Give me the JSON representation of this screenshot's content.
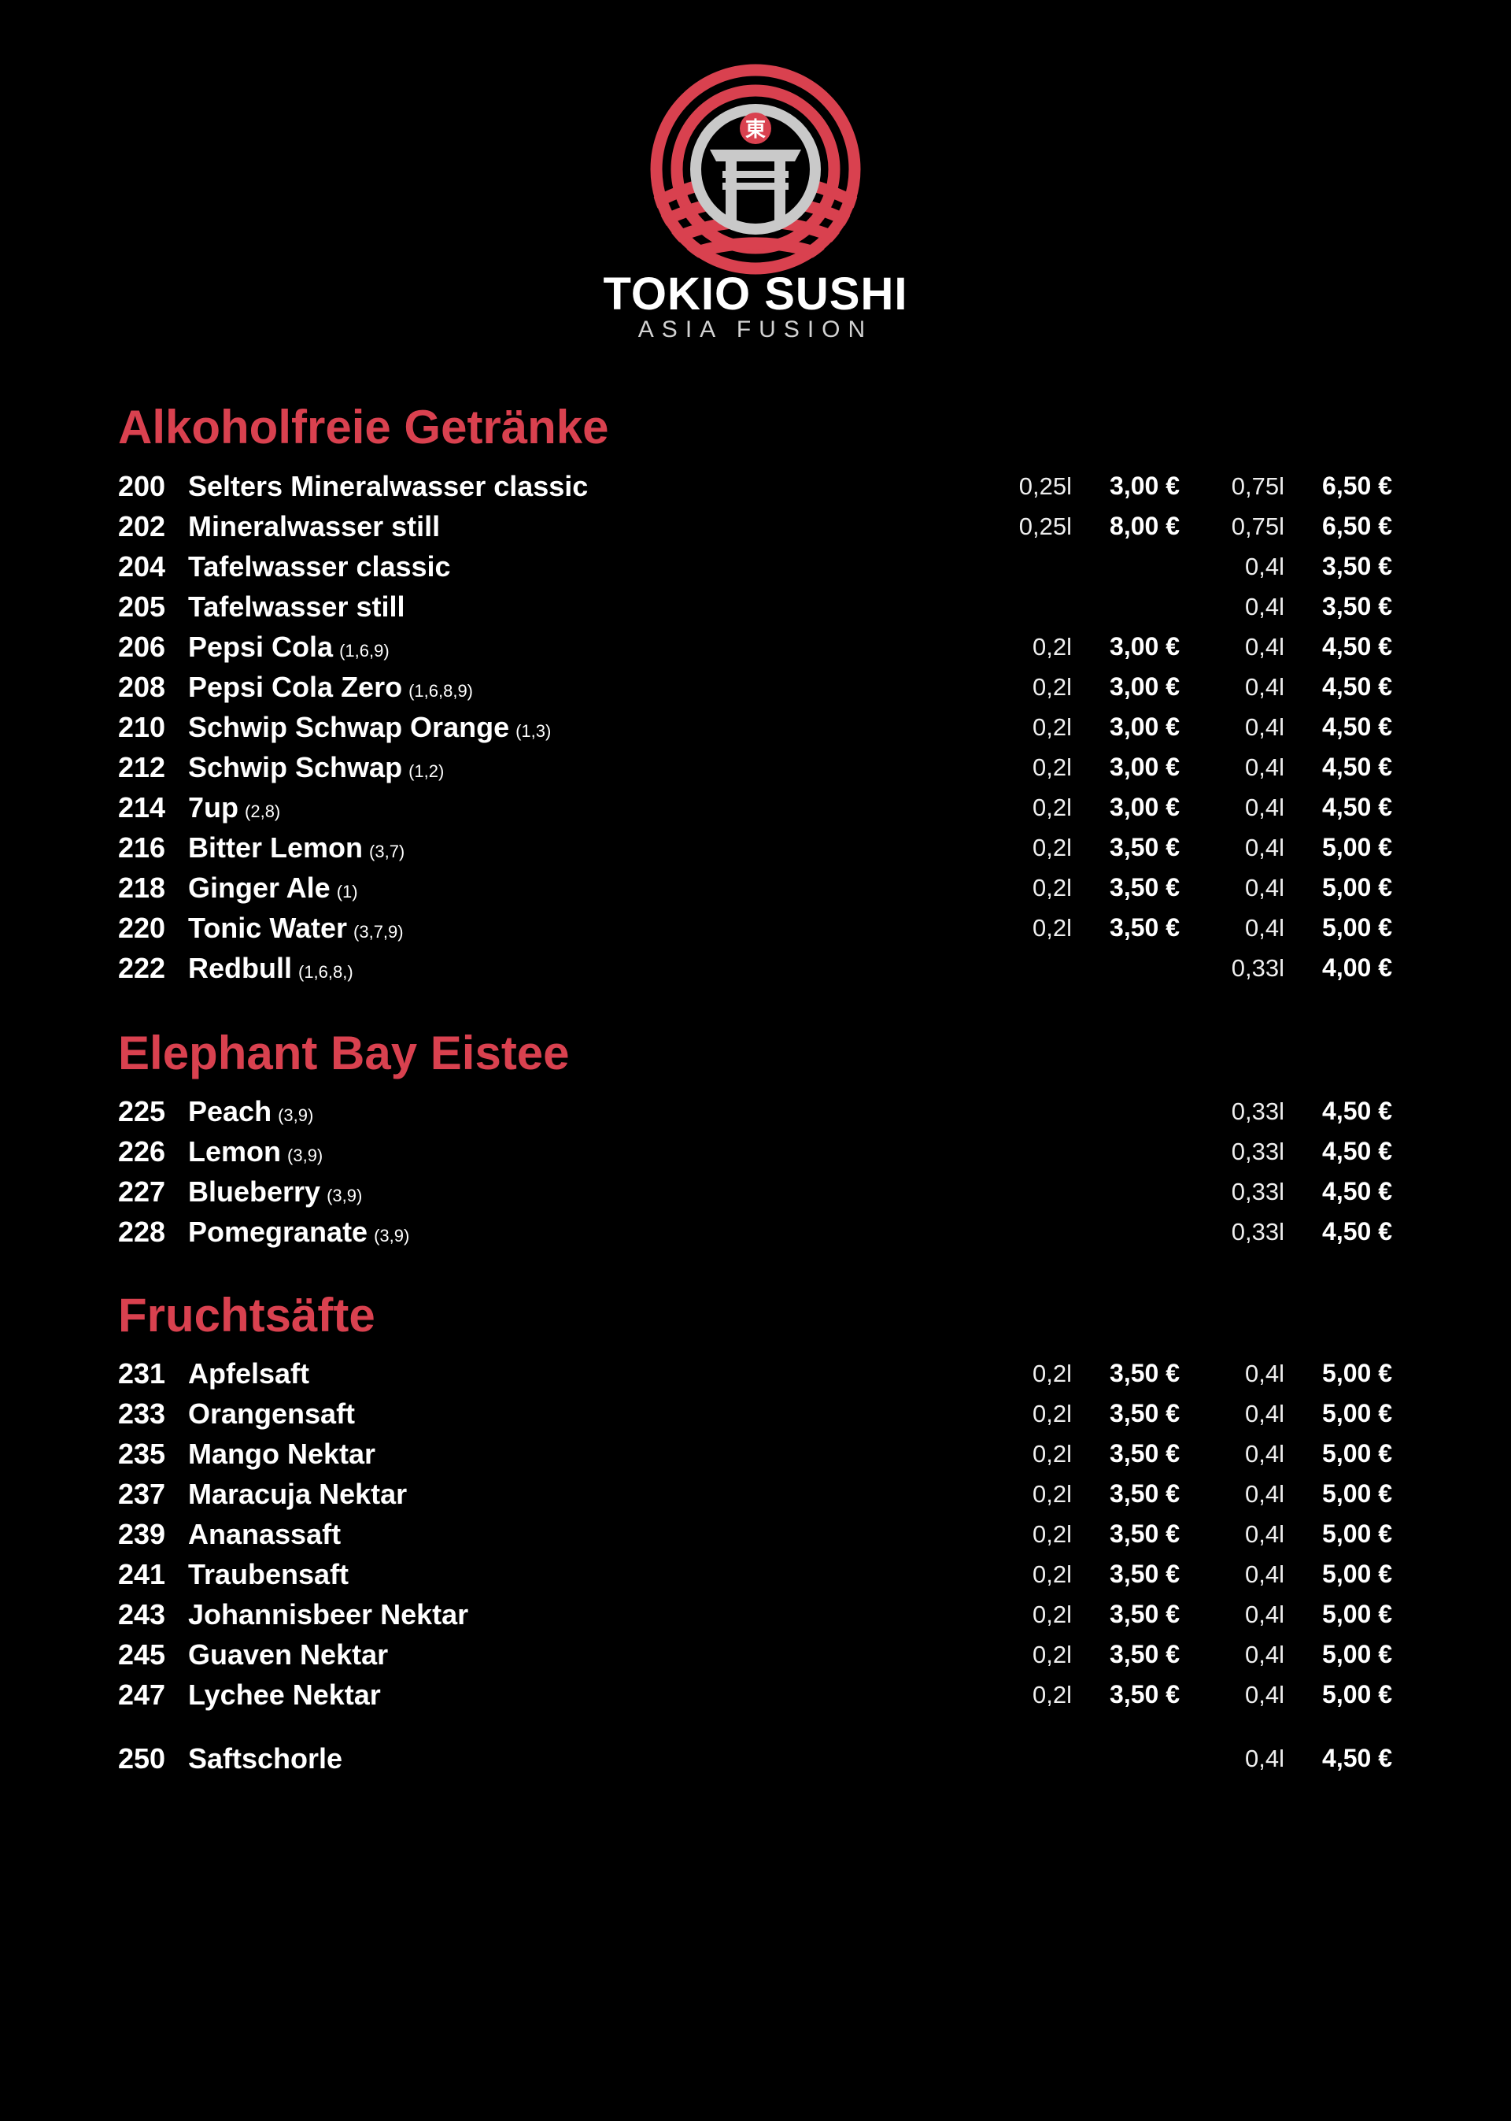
{
  "brand": {
    "title": "TOKIO SUSHI",
    "subtitle": "ASIA FUSION",
    "logo_glyph": "東",
    "accent": "#d9414f",
    "logo_grey": "#c9c9c9"
  },
  "sections": [
    {
      "title": "Alkoholfreie Getränke",
      "items": [
        {
          "num": "200",
          "name": "Selters Mineralwasser classic",
          "note": "",
          "vol1": "0,25l",
          "price1": "3,00 €",
          "vol2": "0,75l",
          "price2": "6,50 €"
        },
        {
          "num": "202",
          "name": "Mineralwasser still",
          "note": "",
          "vol1": "0,25l",
          "price1": "8,00 €",
          "vol2": "0,75l",
          "price2": "6,50 €"
        },
        {
          "num": "204",
          "name": "Tafelwasser classic",
          "note": "",
          "vol1": "",
          "price1": "",
          "vol2": "0,4l",
          "price2": "3,50 €"
        },
        {
          "num": "205",
          "name": "Tafelwasser still",
          "note": "",
          "vol1": "",
          "price1": "",
          "vol2": "0,4l",
          "price2": "3,50 €"
        },
        {
          "num": "206",
          "name": "Pepsi Cola",
          "note": "(1,6,9)",
          "vol1": "0,2l",
          "price1": "3,00 €",
          "vol2": "0,4l",
          "price2": "4,50 €"
        },
        {
          "num": "208",
          "name": "Pepsi Cola Zero",
          "note": "(1,6,8,9)",
          "vol1": "0,2l",
          "price1": "3,00 €",
          "vol2": "0,4l",
          "price2": "4,50 €"
        },
        {
          "num": "210",
          "name": "Schwip Schwap Orange",
          "note": "(1,3)",
          "vol1": "0,2l",
          "price1": "3,00 €",
          "vol2": "0,4l",
          "price2": "4,50 €"
        },
        {
          "num": "212",
          "name": "Schwip Schwap",
          "note": "(1,2)",
          "vol1": "0,2l",
          "price1": "3,00 €",
          "vol2": "0,4l",
          "price2": "4,50 €"
        },
        {
          "num": "214",
          "name": "7up",
          "note": "(2,8)",
          "vol1": "0,2l",
          "price1": "3,00 €",
          "vol2": "0,4l",
          "price2": "4,50 €"
        },
        {
          "num": "216",
          "name": "Bitter Lemon",
          "note": "(3,7)",
          "vol1": "0,2l",
          "price1": "3,50 €",
          "vol2": "0,4l",
          "price2": "5,00 €"
        },
        {
          "num": "218",
          "name": "Ginger Ale",
          "note": "(1)",
          "vol1": "0,2l",
          "price1": "3,50 €",
          "vol2": "0,4l",
          "price2": "5,00 €"
        },
        {
          "num": "220",
          "name": "Tonic Water",
          "note": "(3,7,9)",
          "vol1": "0,2l",
          "price1": "3,50 €",
          "vol2": "0,4l",
          "price2": "5,00 €"
        },
        {
          "num": "222",
          "name": "Redbull",
          "note": "(1,6,8,)",
          "vol1": "",
          "price1": "",
          "vol2": "0,33l",
          "price2": "4,00 €"
        }
      ]
    },
    {
      "title": "Elephant Bay Eistee",
      "items": [
        {
          "num": "225",
          "name": "Peach",
          "note": "(3,9)",
          "vol1": "",
          "price1": "",
          "vol2": "0,33l",
          "price2": "4,50 €"
        },
        {
          "num": "226",
          "name": "Lemon",
          "note": "(3,9)",
          "vol1": "",
          "price1": "",
          "vol2": "0,33l",
          "price2": "4,50 €"
        },
        {
          "num": "227",
          "name": "Blueberry",
          "note": "(3,9)",
          "vol1": "",
          "price1": "",
          "vol2": "0,33l",
          "price2": "4,50 €"
        },
        {
          "num": "228",
          "name": "Pomegranate",
          "note": "(3,9)",
          "vol1": "",
          "price1": "",
          "vol2": "0,33l",
          "price2": "4,50 €"
        }
      ]
    },
    {
      "title": "Fruchtsäfte",
      "items": [
        {
          "num": "231",
          "name": "Apfelsaft",
          "note": "",
          "vol1": "0,2l",
          "price1": "3,50 €",
          "vol2": "0,4l",
          "price2": "5,00 €"
        },
        {
          "num": "233",
          "name": "Orangensaft",
          "note": "",
          "vol1": "0,2l",
          "price1": "3,50 €",
          "vol2": "0,4l",
          "price2": "5,00 €"
        },
        {
          "num": "235",
          "name": "Mango Nektar",
          "note": "",
          "vol1": "0,2l",
          "price1": "3,50 €",
          "vol2": "0,4l",
          "price2": "5,00 €"
        },
        {
          "num": "237",
          "name": "Maracuja Nektar",
          "note": "",
          "vol1": "0,2l",
          "price1": "3,50 €",
          "vol2": "0,4l",
          "price2": "5,00 €"
        },
        {
          "num": "239",
          "name": "Ananassaft",
          "note": "",
          "vol1": "0,2l",
          "price1": "3,50 €",
          "vol2": "0,4l",
          "price2": "5,00 €"
        },
        {
          "num": "241",
          "name": "Traubensaft",
          "note": "",
          "vol1": "0,2l",
          "price1": "3,50 €",
          "vol2": "0,4l",
          "price2": "5,00 €"
        },
        {
          "num": "243",
          "name": "Johannisbeer Nektar",
          "note": "",
          "vol1": "0,2l",
          "price1": "3,50 €",
          "vol2": "0,4l",
          "price2": "5,00 €"
        },
        {
          "num": "245",
          "name": "Guaven Nektar",
          "note": "",
          "vol1": "0,2l",
          "price1": "3,50 €",
          "vol2": "0,4l",
          "price2": "5,00 €"
        },
        {
          "num": "247",
          "name": "Lychee Nektar",
          "note": "",
          "vol1": "0,2l",
          "price1": "3,50 €",
          "vol2": "0,4l",
          "price2": "5,00 €"
        },
        {
          "num": "250",
          "name": "Saftschorle",
          "note": "",
          "vol1": "",
          "price1": "",
          "vol2": "0,4l",
          "price2": "4,50 €",
          "separated": true
        }
      ]
    }
  ]
}
